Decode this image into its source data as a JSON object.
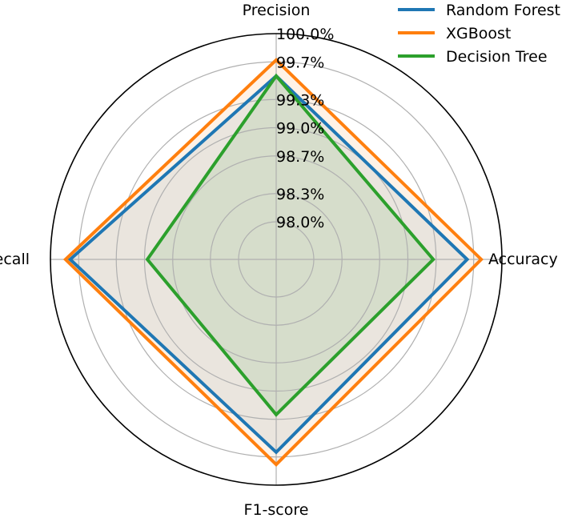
{
  "chart_data": {
    "type": "radar",
    "axes": [
      "Accuracy",
      "Precision",
      "Recall",
      "F1-score"
    ],
    "r_ticks": [
      "98.0%",
      "98.3%",
      "98.7%",
      "99.0%",
      "99.3%",
      "99.7%",
      "100.0%"
    ],
    "r_tick_values": [
      98.0,
      98.3,
      98.7,
      99.0,
      99.3,
      99.7,
      100.0
    ],
    "rlim": [
      97.6,
      100.0
    ],
    "grid": true,
    "legend_position": "top-right",
    "series": [
      {
        "name": "Random Forest",
        "color": "#1f77b4",
        "values": [
          99.63,
          99.55,
          99.79,
          99.65
        ]
      },
      {
        "name": "XGBoost",
        "color": "#ff7f0e",
        "values": [
          99.78,
          99.72,
          99.84,
          99.78
        ]
      },
      {
        "name": "Decision Tree",
        "color": "#2ca02c",
        "values": [
          99.27,
          99.55,
          98.97,
          99.25
        ]
      }
    ]
  }
}
